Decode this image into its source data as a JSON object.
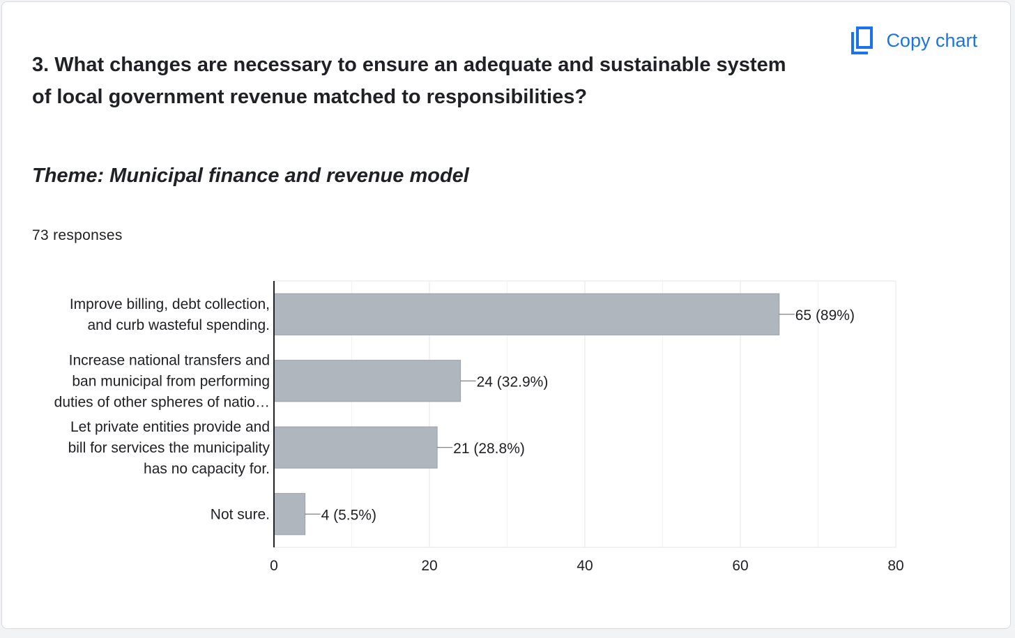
{
  "question": {
    "title": "3. What changes are necessary to ensure an adequate and sustainable system of local government revenue matched to responsibilities?",
    "theme": "Theme: Municipal finance and revenue model",
    "responses": "73 responses"
  },
  "toolbar": {
    "copy_label": "Copy chart",
    "copy_icon": "copy-icon"
  },
  "colors": {
    "bar": "#b0b6be",
    "accent": "#1a73e8",
    "grid": "#e6e6e6"
  },
  "chart_data": {
    "type": "bar",
    "orientation": "horizontal",
    "categories": [
      [
        "Improve billing, debt collection,",
        "and curb wasteful spending."
      ],
      [
        "Increase national transfers and",
        "ban municipal from performing",
        "duties of other spheres of natio…"
      ],
      [
        "Let private entities provide and",
        "bill for services the municipality",
        "has no capacity for."
      ],
      [
        "Not sure."
      ]
    ],
    "values": [
      65,
      24,
      21,
      4
    ],
    "data_labels": [
      "65 (89%)",
      "24 (32.9%)",
      "21 (28.8%)",
      "4 (5.5%)"
    ],
    "xlim": [
      0,
      80
    ],
    "x_ticks": [
      0,
      20,
      40,
      60,
      80
    ],
    "minor_gridlines": true,
    "legend": "none"
  }
}
